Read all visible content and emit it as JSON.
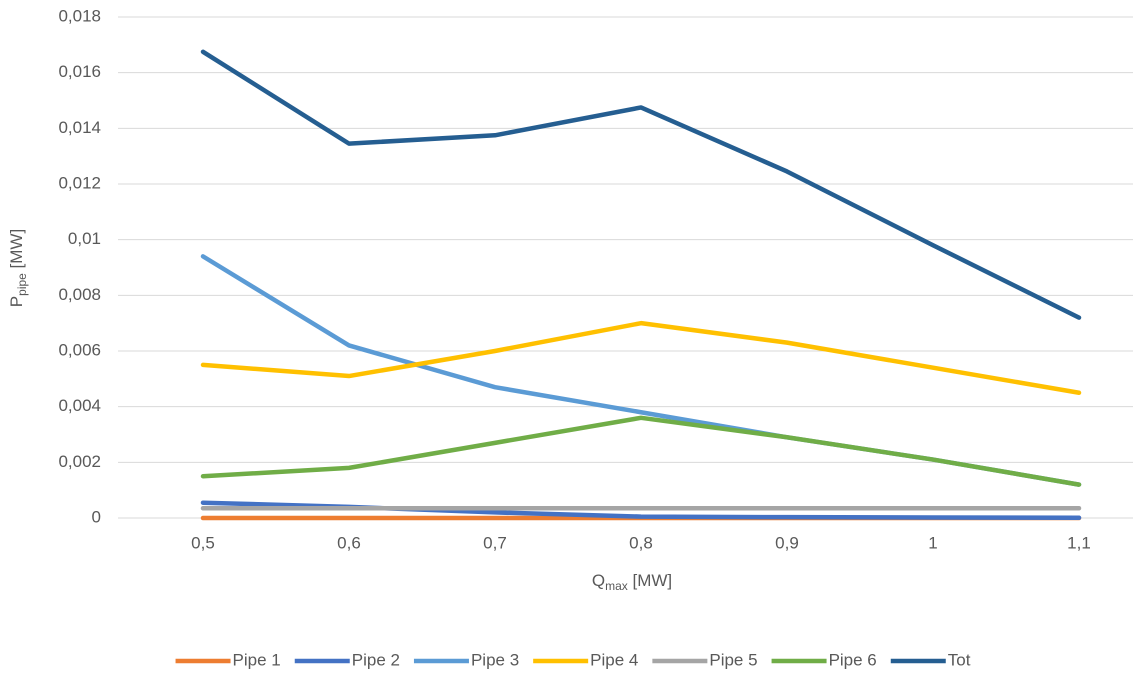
{
  "chart_data": {
    "type": "line",
    "xlabel": {
      "text": "Q",
      "subscript": "max",
      "suffix": " [MW]"
    },
    "ylabel": {
      "text": "P",
      "subscript": "pipe",
      "suffix": " [MW]"
    },
    "categories": [
      "0,5",
      "0,6",
      "0,7",
      "0,8",
      "0,9",
      "1",
      "1,1"
    ],
    "series": [
      {
        "name": "Pipe 1",
        "color": "#ed7d31",
        "values": [
          0,
          0,
          0,
          0,
          0,
          0,
          0
        ]
      },
      {
        "name": "Pipe 2",
        "color": "#4472c4",
        "values": [
          0.00055,
          0.0004,
          0.0002,
          5e-05,
          3e-05,
          2e-05,
          1e-05
        ]
      },
      {
        "name": "Pipe 3",
        "color": "#5b9bd5",
        "values": [
          0.0094,
          0.0062,
          0.0047,
          0.0038,
          0.0029,
          0.0021,
          0.0012
        ]
      },
      {
        "name": "Pipe 4",
        "color": "#ffc000",
        "values": [
          0.0055,
          0.0051,
          0.006,
          0.007,
          0.0063,
          0.0054,
          0.0045
        ]
      },
      {
        "name": "Pipe 5",
        "color": "#a5a5a5",
        "values": [
          0.00035,
          0.00035,
          0.00035,
          0.00035,
          0.00035,
          0.00035,
          0.00035
        ]
      },
      {
        "name": "Pipe 6",
        "color": "#70ad47",
        "values": [
          0.0015,
          0.0018,
          0.0027,
          0.0036,
          0.0029,
          0.0021,
          0.0012
        ]
      },
      {
        "name": "Tot",
        "color": "#255e91",
        "values": [
          0.01675,
          0.01345,
          0.01375,
          0.01475,
          0.01245,
          0.0098,
          0.0072
        ]
      }
    ],
    "ylim": [
      0,
      0.018
    ],
    "yticks": [
      0,
      {
        "value": 0.002,
        "label": "0,002"
      },
      {
        "value": 0.004,
        "label": "0,004"
      },
      {
        "value": 0.006,
        "label": "0,006"
      },
      {
        "value": 0.008,
        "label": "0,008"
      },
      {
        "value": 0.01,
        "label": "0,01"
      },
      {
        "value": 0.012,
        "label": "0,012"
      },
      {
        "value": 0.014,
        "label": "0,014"
      },
      {
        "value": 0.016,
        "label": "0,016"
      },
      {
        "value": 0.018,
        "label": "0,018"
      }
    ],
    "grid": true,
    "legend": "bottom"
  }
}
